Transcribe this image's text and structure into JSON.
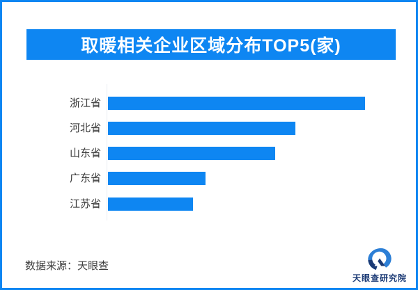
{
  "accent_color": "#0e86f2",
  "title": {
    "text": "取暖相关企业区域分布TOP5(家)"
  },
  "chart_data": {
    "type": "bar",
    "orientation": "horizontal",
    "title": "取暖相关企业区域分布TOP5(家)",
    "categories": [
      "浙江省",
      "河北省",
      "山东省",
      "广东省",
      "江苏省"
    ],
    "values_pct_of_max": [
      100,
      73,
      65,
      38,
      33
    ],
    "value_labels_shown": false,
    "bar_color": "#0e86f2",
    "label_color": "#3a3a3a",
    "axis": {
      "y_axis_line_shown": true,
      "x_axis_shown": false,
      "grid": false
    },
    "legend": "none"
  },
  "footer": {
    "source_text": "数据来源：天眼查"
  },
  "brand": {
    "text": "天眼查研究院",
    "navy_color": "#1b3a75",
    "blue_color": "#2c7fd6"
  }
}
